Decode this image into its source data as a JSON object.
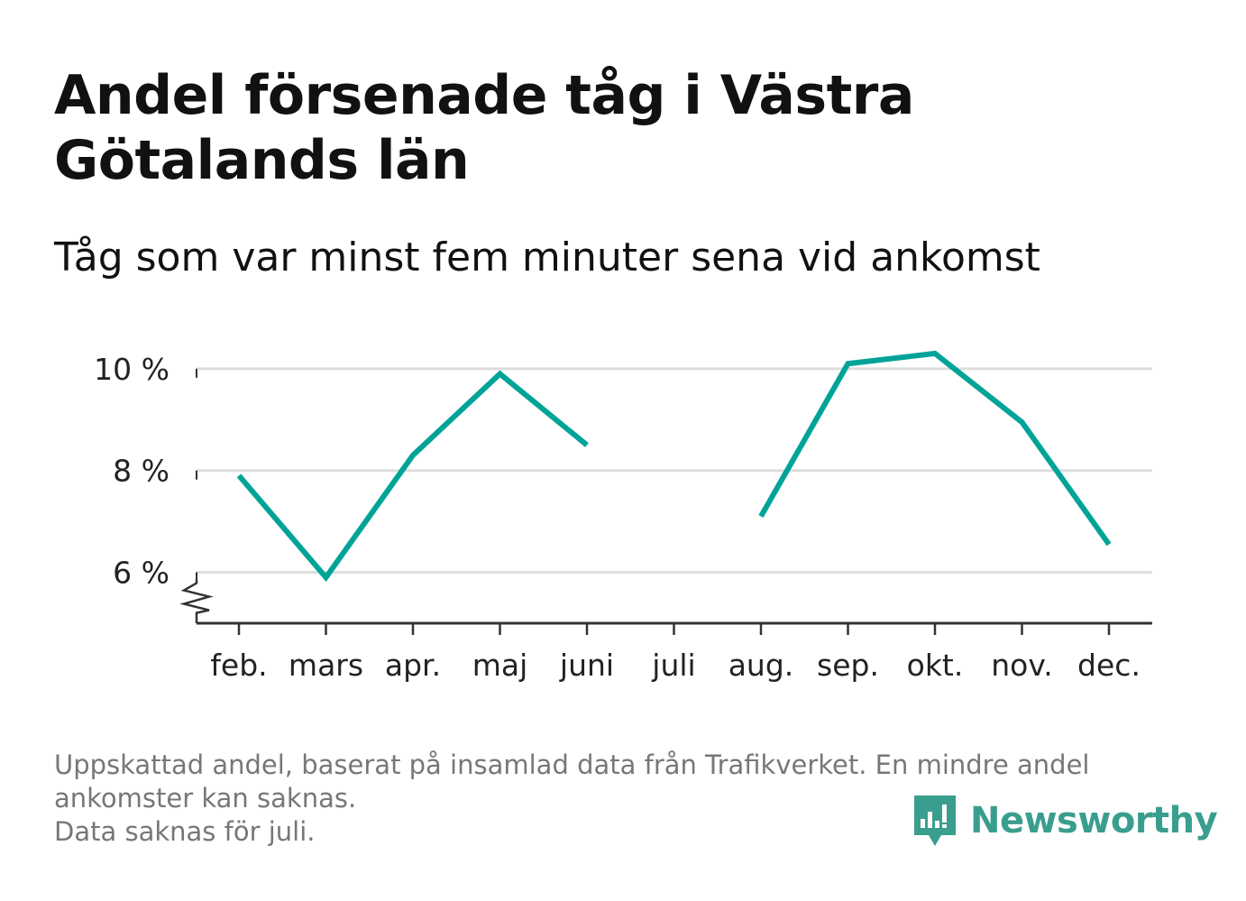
{
  "title": "Andel försenade tåg i Västra Götalands län",
  "subtitle": "Tåg som var minst fem minuter sena vid ankomst",
  "notes": [
    "Uppskattad andel, baserat på insamlad data från Trafikverket. En mindre andel",
    "ankomster kan saknas.",
    "Data saknas för juli."
  ],
  "brand": {
    "name": "Newsworthy",
    "color": "#3a9e8f"
  },
  "colors": {
    "line": "#00a398",
    "grid": "#dddddd",
    "axis": "#333333"
  },
  "chart_data": {
    "type": "line",
    "categories": [
      "feb.",
      "mars",
      "apr.",
      "maj",
      "juni",
      "juli",
      "aug.",
      "sep.",
      "okt.",
      "nov.",
      "dec."
    ],
    "series": [
      {
        "values": [
          7.9,
          5.9,
          8.3,
          9.9,
          8.5,
          null,
          7.1,
          10.1,
          10.3,
          8.95,
          6.55
        ]
      }
    ],
    "ylim": [
      5,
      10.6
    ],
    "yticks": [
      6,
      8,
      10
    ],
    "ytick_labels": [
      "6 %",
      "8 %",
      "10 %"
    ],
    "y_axis_broken": true,
    "grid": true,
    "xlabel": "",
    "ylabel": ""
  }
}
